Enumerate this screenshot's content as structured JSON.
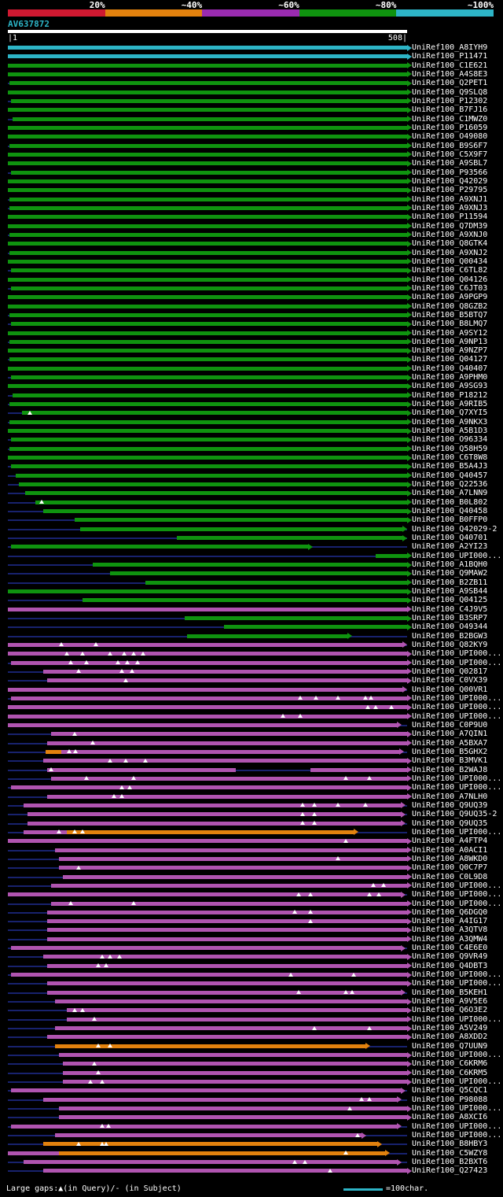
{
  "colors": {
    "red": "#d01931",
    "orange": "#e2820e",
    "purple_scale": "#9a2bb0",
    "purple": "#b054b0",
    "green": "#0f930f",
    "cyan": "#2db4c6",
    "navy": "#18226e",
    "white": "#ffffff"
  },
  "scale": {
    "segments": [
      {
        "label": "20%",
        "color": "red"
      },
      {
        "label": "~40%",
        "color": "orange"
      },
      {
        "label": "~60%",
        "color": "purple_scale"
      },
      {
        "label": "~80%",
        "color": "green"
      },
      {
        "label": "~100%",
        "color": "cyan"
      }
    ]
  },
  "query": {
    "name": "AV637872",
    "start_label": "|1",
    "end_label": "508|",
    "length": 508
  },
  "footer": {
    "gaps_legend": "Large gaps:▲(in Query)/- (in Subject)",
    "scale_legend": "=100char."
  },
  "chart_data": {
    "type": "bar",
    "subtype": "alignment-span-overview",
    "title": "AV637872",
    "xlabel": "query position (aa)",
    "xlim": [
      1,
      508
    ],
    "legend_position": "top",
    "rows": [
      {
        "label": "UniRef100_A8IYH9",
        "c": "cyan",
        "s": 0,
        "e": 508
      },
      {
        "label": "UniRef100_P11471",
        "c": "cyan",
        "s": 0,
        "e": 508
      },
      {
        "label": "UniRef100_C1E621",
        "c": "green",
        "s": 0,
        "e": 508
      },
      {
        "label": "UniRef100_A4S8E3",
        "c": "green",
        "s": 0,
        "e": 508
      },
      {
        "label": "UniRef100_Q2PET1",
        "c": "green",
        "s": 2,
        "e": 508
      },
      {
        "label": "UniRef100_Q9SLQ8",
        "c": "green",
        "s": 0,
        "e": 508
      },
      {
        "label": "UniRef100_P12302",
        "c": "green",
        "s": 4,
        "e": 508
      },
      {
        "label": "UniRef100_B7FJ16",
        "c": "green",
        "s": 0,
        "e": 508
      },
      {
        "label": "UniRef100_C1MWZ0",
        "c": "green",
        "s": 6,
        "e": 508
      },
      {
        "label": "UniRef100_P16059",
        "c": "green",
        "s": 0,
        "e": 508
      },
      {
        "label": "UniRef100_O49080",
        "c": "green",
        "s": 0,
        "e": 508
      },
      {
        "label": "UniRef100_B9S6F7",
        "c": "green",
        "s": 2,
        "e": 508
      },
      {
        "label": "UniRef100_C5X9F7",
        "c": "green",
        "s": 0,
        "e": 508
      },
      {
        "label": "UniRef100_A9SBL7",
        "c": "green",
        "s": 0,
        "e": 508
      },
      {
        "label": "UniRef100_P93566",
        "c": "green",
        "s": 4,
        "e": 508
      },
      {
        "label": "UniRef100_Q42029",
        "c": "green",
        "s": 0,
        "e": 508
      },
      {
        "label": "UniRef100_P29795",
        "c": "green",
        "s": 0,
        "e": 508
      },
      {
        "label": "UniRef100_A9XNJ1",
        "c": "green",
        "s": 2,
        "e": 508
      },
      {
        "label": "UniRef100_A9XNJ3",
        "c": "green",
        "s": 2,
        "e": 508
      },
      {
        "label": "UniRef100_P11594",
        "c": "green",
        "s": 0,
        "e": 508
      },
      {
        "label": "UniRef100_Q7DM39",
        "c": "green",
        "s": 0,
        "e": 508
      },
      {
        "label": "UniRef100_A9XNJ0",
        "c": "green",
        "s": 2,
        "e": 508
      },
      {
        "label": "UniRef100_Q8GTK4",
        "c": "green",
        "s": 0,
        "e": 508
      },
      {
        "label": "UniRef100_A9XNJ2",
        "c": "green",
        "s": 2,
        "e": 508
      },
      {
        "label": "UniRef100_Q00434",
        "c": "green",
        "s": 0,
        "e": 508
      },
      {
        "label": "UniRef100_C6TL82",
        "c": "green",
        "s": 4,
        "e": 508
      },
      {
        "label": "UniRef100_Q04126",
        "c": "green",
        "s": 0,
        "e": 508
      },
      {
        "label": "UniRef100_C6JT03",
        "c": "green",
        "s": 4,
        "e": 508
      },
      {
        "label": "UniRef100_A9PGP9",
        "c": "green",
        "s": 0,
        "e": 508
      },
      {
        "label": "UniRef100_Q8GZB2",
        "c": "green",
        "s": 0,
        "e": 508
      },
      {
        "label": "UniRef100_B5BTQ7",
        "c": "green",
        "s": 2,
        "e": 508
      },
      {
        "label": "UniRef100_B8LMQ7",
        "c": "green",
        "s": 4,
        "e": 508
      },
      {
        "label": "UniRef100_A9SY12",
        "c": "green",
        "s": 0,
        "e": 508
      },
      {
        "label": "UniRef100_A9NP13",
        "c": "green",
        "s": 2,
        "e": 508
      },
      {
        "label": "UniRef100_A9NZP7",
        "c": "green",
        "s": 0,
        "e": 508
      },
      {
        "label": "UniRef100_Q04127",
        "c": "green",
        "s": 2,
        "e": 508
      },
      {
        "label": "UniRef100_Q40407",
        "c": "green",
        "s": 0,
        "e": 508
      },
      {
        "label": "UniRef100_A9PHM0",
        "c": "green",
        "s": 4,
        "e": 508
      },
      {
        "label": "UniRef100_A9SG93",
        "c": "green",
        "s": 0,
        "e": 508
      },
      {
        "label": "UniRef100_P18212",
        "c": "green",
        "s": 6,
        "e": 508
      },
      {
        "label": "UniRef100_A9RIB5",
        "c": "green",
        "s": 2,
        "e": 508
      },
      {
        "label": "UniRef100_Q7XYI5",
        "c": "green",
        "s": 18,
        "e": 508,
        "g": [
          28
        ]
      },
      {
        "label": "UniRef100_A9NKX3",
        "c": "green",
        "s": 2,
        "e": 508
      },
      {
        "label": "UniRef100_A5B1D3",
        "c": "green",
        "s": 0,
        "e": 508
      },
      {
        "label": "UniRef100_O96334",
        "c": "green",
        "s": 4,
        "e": 508
      },
      {
        "label": "UniRef100_Q58H59",
        "c": "green",
        "s": 2,
        "e": 508
      },
      {
        "label": "UniRef100_C6T8W8",
        "c": "green",
        "s": 0,
        "e": 508
      },
      {
        "label": "UniRef100_B5A4J3",
        "c": "green",
        "s": 4,
        "e": 508
      },
      {
        "label": "UniRef100_Q40457",
        "c": "green",
        "s": 10,
        "e": 508
      },
      {
        "label": "UniRef100_Q22536",
        "c": "green",
        "s": 14,
        "e": 508
      },
      {
        "label": "UniRef100_A7LNN9",
        "c": "green",
        "s": 22,
        "e": 508
      },
      {
        "label": "UniRef100_B0L802",
        "c": "green",
        "s": 35,
        "e": 508,
        "g": [
          43
        ]
      },
      {
        "label": "UniRef100_Q40458",
        "c": "green",
        "s": 45,
        "e": 508
      },
      {
        "label": "UniRef100_B0FFP0",
        "c": "green",
        "s": 85,
        "e": 508
      },
      {
        "label": "UniRef100_Q42029-2",
        "c": "green",
        "s": 92,
        "e": 502
      },
      {
        "label": "UniRef100_Q40701",
        "c": "green",
        "s": 215,
        "e": 502
      },
      {
        "label": "UniRef100_A2YI23",
        "c": "green",
        "s": 4,
        "e": 382
      },
      {
        "label": "UniRef100_UPI000...",
        "c": "green",
        "s": 468,
        "e": 508
      },
      {
        "label": "UniRef100_A1BQH0",
        "c": "green",
        "s": 108,
        "e": 508
      },
      {
        "label": "UniRef100_Q9MAW2",
        "c": "green",
        "s": 130,
        "e": 508
      },
      {
        "label": "UniRef100_B2ZB11",
        "c": "green",
        "s": 175,
        "e": 508
      },
      {
        "label": "UniRef100_A9SB44",
        "c": "green",
        "s": 0,
        "e": 508
      },
      {
        "label": "UniRef100_Q04125",
        "c": "green",
        "s": 95,
        "e": 508
      },
      {
        "label": "UniRef100_C4J9V5",
        "c": "purple",
        "s": 0,
        "e": 508
      },
      {
        "label": "UniRef100_B3SRP7",
        "c": "green",
        "s": 225,
        "e": 508
      },
      {
        "label": "UniRef100_O49344",
        "c": "green",
        "s": 275,
        "e": 508
      },
      {
        "label": "UniRef100_B2BGW3",
        "c": "green",
        "s": 228,
        "e": 432
      },
      {
        "label": "UniRef100_Q82KY9",
        "c": "purple",
        "s": 0,
        "e": 502,
        "g": [
          68,
          112
        ]
      },
      {
        "label": "UniRef100_UPI000...",
        "c": "purple",
        "s": 0,
        "e": 508,
        "g": [
          75,
          95,
          130,
          148,
          160,
          172
        ]
      },
      {
        "label": "UniRef100_UPI000...",
        "c": "purple",
        "s": 4,
        "e": 508,
        "g": [
          80,
          100,
          140,
          152,
          165
        ]
      },
      {
        "label": "UniRef100_Q02817",
        "c": "purple",
        "s": 45,
        "e": 508,
        "g": [
          90,
          145,
          158
        ]
      },
      {
        "label": "UniRef100_C0VX39",
        "c": "purple",
        "s": 50,
        "e": 508,
        "g": [
          150
        ]
      },
      {
        "label": "UniRef100_Q00VR1",
        "c": "purple",
        "s": 0,
        "e": 502
      },
      {
        "label": "UniRef100_UPI000...",
        "c": "purple",
        "s": 4,
        "e": 508,
        "g": [
          372,
          392,
          420,
          455,
          462
        ]
      },
      {
        "label": "UniRef100_UPI000...",
        "c": "purple",
        "s": 0,
        "e": 508,
        "g": [
          458,
          468,
          488
        ]
      },
      {
        "label": "UniRef100_UPI000...",
        "c": "purple",
        "s": 0,
        "e": 508,
        "g": [
          350,
          372
        ]
      },
      {
        "label": "UniRef100_C0P9U0",
        "c": "purple",
        "s": 0,
        "e": 495
      },
      {
        "label": "UniRef100_A7QIN1",
        "c": "purple",
        "s": 55,
        "e": 508,
        "g": [
          85
        ]
      },
      {
        "label": "UniRef100_A5BXA7",
        "c": "purple",
        "s": 50,
        "e": 508,
        "g": [
          108
        ]
      },
      {
        "label": "UniRef100_B5GHX2",
        "c": "purple",
        "s": 68,
        "e": 498,
        "g": [
          78,
          86
        ],
        "x": [
          {
            "s": 48,
            "e": 68,
            "c": "orange"
          }
        ]
      },
      {
        "label": "UniRef100_B3MVK1",
        "c": "purple",
        "s": 45,
        "e": 508,
        "g": [
          130,
          150,
          175
        ]
      },
      {
        "label": "UniRef100_B2WAJ8",
        "c": "purple",
        "s": 50,
        "e": 290,
        "g": [
          55
        ],
        "x": [
          {
            "s": 385,
            "e": 508,
            "c": "purple"
          }
        ]
      },
      {
        "label": "UniRef100_UPI000...",
        "c": "purple",
        "s": 55,
        "e": 508,
        "g": [
          100,
          160,
          430,
          460
        ]
      },
      {
        "label": "UniRef100_UPI000...",
        "c": "purple",
        "s": 4,
        "e": 508,
        "g": [
          145,
          155
        ]
      },
      {
        "label": "UniRef100_A7NLH0",
        "c": "purple",
        "s": 50,
        "e": 508,
        "g": [
          135,
          145
        ]
      },
      {
        "label": "UniRef100_Q9UQ39",
        "c": "purple",
        "s": 20,
        "e": 500,
        "g": [
          375,
          390,
          420,
          455
        ]
      },
      {
        "label": "UniRef100_Q9UQ35-2",
        "c": "purple",
        "s": 25,
        "e": 500,
        "g": [
          375,
          390
        ]
      },
      {
        "label": "UniRef100_Q9UQ35",
        "c": "purple",
        "s": 25,
        "e": 500,
        "g": [
          375,
          390
        ]
      },
      {
        "label": "UniRef100_UPI000...",
        "c": "purple",
        "s": 20,
        "e": 75,
        "g": [
          65,
          85,
          95
        ],
        "x": [
          {
            "s": 75,
            "e": 440,
            "c": "orange"
          }
        ]
      },
      {
        "label": "UniRef100_A4FTP4",
        "c": "purple",
        "s": 0,
        "e": 508,
        "g": [
          430
        ]
      },
      {
        "label": "UniRef100_A0ACI1",
        "c": "purple",
        "s": 60,
        "e": 508
      },
      {
        "label": "UniRef100_A8WKD0",
        "c": "purple",
        "s": 65,
        "e": 508,
        "g": [
          420
        ]
      },
      {
        "label": "UniRef100_Q0C7P7",
        "c": "purple",
        "s": 65,
        "e": 508,
        "g": [
          90
        ]
      },
      {
        "label": "UniRef100_C0L9D8",
        "c": "purple",
        "s": 70,
        "e": 508
      },
      {
        "label": "UniRef100_UPI000...",
        "c": "purple",
        "s": 55,
        "e": 508,
        "g": [
          465,
          478
        ]
      },
      {
        "label": "UniRef100_UPI000...",
        "c": "purple",
        "s": 0,
        "e": 500,
        "g": [
          370,
          385,
          460,
          472
        ]
      },
      {
        "label": "UniRef100_UPI000...",
        "c": "purple",
        "s": 55,
        "e": 508,
        "g": [
          80,
          160
        ]
      },
      {
        "label": "UniRef100_Q6DGQ0",
        "c": "purple",
        "s": 50,
        "e": 508,
        "g": [
          365,
          385
        ]
      },
      {
        "label": "UniRef100_A4IG17",
        "c": "purple",
        "s": 50,
        "e": 508,
        "g": [
          385
        ]
      },
      {
        "label": "UniRef100_A3QTV8",
        "c": "purple",
        "s": 50,
        "e": 508
      },
      {
        "label": "UniRef100_A3QMW4",
        "c": "purple",
        "s": 50,
        "e": 508
      },
      {
        "label": "UniRef100_C4E6E0",
        "c": "purple",
        "s": 4,
        "e": 500
      },
      {
        "label": "UniRef100_Q9VR49",
        "c": "purple",
        "s": 45,
        "e": 508,
        "g": [
          120,
          130,
          142
        ]
      },
      {
        "label": "UniRef100_Q4DBT3",
        "c": "purple",
        "s": 50,
        "e": 508,
        "g": [
          115,
          125
        ]
      },
      {
        "label": "UniRef100_UPI000...",
        "c": "purple",
        "s": 4,
        "e": 508,
        "g": [
          360,
          440
        ]
      },
      {
        "label": "UniRef100_UPI000...",
        "c": "purple",
        "s": 50,
        "e": 508
      },
      {
        "label": "UniRef100_B5KEH1",
        "c": "purple",
        "s": 50,
        "e": 500,
        "g": [
          370,
          430,
          438
        ]
      },
      {
        "label": "UniRef100_A9V5E6",
        "c": "purple",
        "s": 60,
        "e": 508
      },
      {
        "label": "UniRef100_Q6O3E2",
        "c": "purple",
        "s": 75,
        "e": 508,
        "g": [
          85,
          95
        ]
      },
      {
        "label": "UniRef100_UPI000...",
        "c": "purple",
        "s": 75,
        "e": 508,
        "g": [
          110
        ]
      },
      {
        "label": "UniRef100_A5V249",
        "c": "purple",
        "s": 60,
        "e": 508,
        "g": [
          390,
          460
        ]
      },
      {
        "label": "UniRef100_A8XDD2",
        "c": "purple",
        "s": 50,
        "e": 508
      },
      {
        "label": "UniRef100_Q7UUN9",
        "c": "orange",
        "s": 60,
        "e": 455,
        "g": [
          115,
          130
        ]
      },
      {
        "label": "UniRef100_UPI000...",
        "c": "purple",
        "s": 65,
        "e": 508
      },
      {
        "label": "UniRef100_C6KRM6",
        "c": "purple",
        "s": 70,
        "e": 508,
        "g": [
          110
        ]
      },
      {
        "label": "UniRef100_C6KRM5",
        "c": "purple",
        "s": 70,
        "e": 508,
        "g": [
          115
        ]
      },
      {
        "label": "UniRef100_UPI000...",
        "c": "purple",
        "s": 70,
        "e": 508,
        "g": [
          105,
          120
        ]
      },
      {
        "label": "UniRef100_Q5CQC1",
        "c": "purple",
        "s": 4,
        "e": 500
      },
      {
        "label": "UniRef100_P98088",
        "c": "purple",
        "s": 45,
        "e": 495,
        "g": [
          450,
          460
        ]
      },
      {
        "label": "UniRef100_UPI000...",
        "c": "purple",
        "s": 65,
        "e": 508,
        "g": [
          435
        ]
      },
      {
        "label": "UniRef100_A8XCI6",
        "c": "purple",
        "s": 65,
        "e": 508
      },
      {
        "label": "UniRef100_UPI000...",
        "c": "purple",
        "s": 4,
        "e": 495,
        "g": [
          120,
          128
        ]
      },
      {
        "label": "UniRef100_UPI000...",
        "c": "purple",
        "s": 60,
        "e": 450,
        "g": [
          445
        ]
      },
      {
        "label": "UniRef100_B8HBY3",
        "c": "orange",
        "s": 45,
        "e": 470,
        "g": [
          90,
          120,
          125
        ]
      },
      {
        "label": "UniRef100_C5WZY8",
        "c": "purple",
        "s": 0,
        "e": 65,
        "g": [
          430
        ],
        "x": [
          {
            "s": 65,
            "e": 480,
            "c": "orange"
          }
        ]
      },
      {
        "label": "UniRef100_B2BXT6",
        "c": "purple",
        "s": 20,
        "e": 495,
        "g": [
          365,
          378
        ]
      },
      {
        "label": "UniRef100_Q27423",
        "c": "purple",
        "s": 45,
        "e": 508,
        "g": [
          410
        ]
      }
    ]
  }
}
